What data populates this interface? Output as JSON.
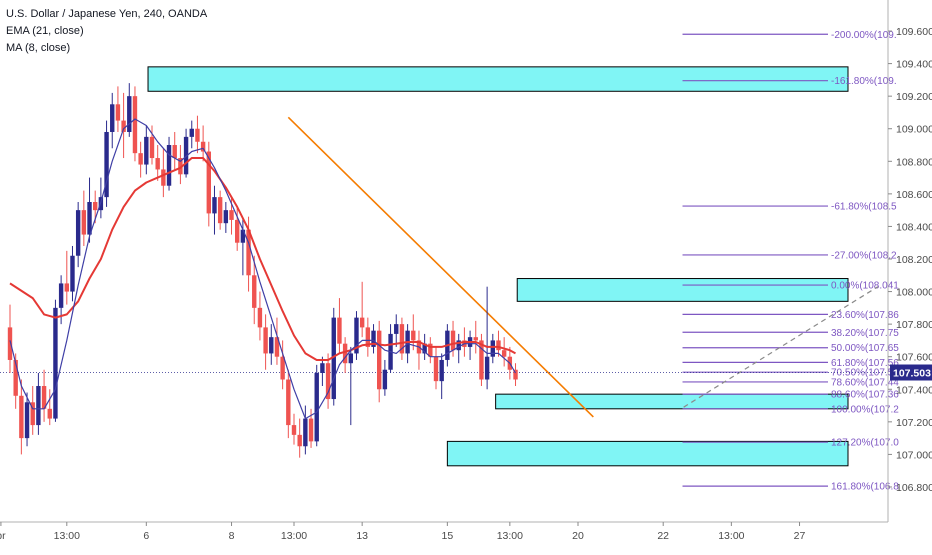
{
  "header": {
    "symbol_line": "U.S. Dollar / Japanese Yen, 240, OANDA",
    "indicator_ema": "EMA (21, close)",
    "indicator_ma": "MA (8, close)"
  },
  "colors": {
    "up": "#2a2a8c",
    "down": "#ef5350",
    "ema": "#e53935",
    "ma": "#3f3fa6",
    "fib": "#7e57c2",
    "zone_fill": "#80f5f5",
    "zone_stroke": "#000000",
    "trendline": "#f57c00",
    "price_badge": "#2a2a8c",
    "axis_text": "#4a4a4a"
  },
  "chart_data": {
    "type": "candlestick",
    "y_axis": {
      "min": 106.72,
      "max": 109.68,
      "ticks": [
        106.8,
        107.0,
        107.2,
        107.4,
        107.6,
        107.8,
        108.0,
        108.2,
        108.4,
        108.6,
        108.8,
        109.0,
        109.2,
        109.4,
        109.6
      ],
      "tick_labels": [
        "106.800",
        "107.000",
        "107.200",
        "107.400",
        "107.600",
        "107.800",
        "108.000",
        "108.200",
        "108.400",
        "108.600",
        "108.800",
        "109.000",
        "109.200",
        "109.400",
        "109.600"
      ]
    },
    "x_axis_labels": [
      {
        "label": "pr",
        "bar": -1.6
      },
      {
        "label": "13:00",
        "bar": 10
      },
      {
        "label": "6",
        "bar": 24
      },
      {
        "label": "8",
        "bar": 39
      },
      {
        "label": "13:00",
        "bar": 50
      },
      {
        "label": "13",
        "bar": 62
      },
      {
        "label": "15",
        "bar": 77
      },
      {
        "label": "13:00",
        "bar": 88
      },
      {
        "label": "20",
        "bar": 100
      },
      {
        "label": "22",
        "bar": 115
      },
      {
        "label": "13:00",
        "bar": 127
      },
      {
        "label": "27",
        "bar": 139
      }
    ],
    "current_price": {
      "value": 107.503,
      "label": "107.503"
    },
    "candles": [
      [
        107.78,
        107.92,
        107.5,
        107.58
      ],
      [
        107.58,
        107.62,
        107.28,
        107.36
      ],
      [
        107.36,
        107.46,
        107.0,
        107.1
      ],
      [
        107.1,
        107.38,
        107.05,
        107.32
      ],
      [
        107.32,
        107.42,
        107.12,
        107.18
      ],
      [
        107.18,
        107.5,
        107.12,
        107.42
      ],
      [
        107.42,
        107.52,
        107.2,
        107.28
      ],
      [
        107.28,
        107.4,
        107.18,
        107.22
      ],
      [
        107.22,
        107.95,
        107.2,
        107.9
      ],
      [
        107.9,
        108.1,
        107.8,
        108.05
      ],
      [
        108.05,
        108.25,
        107.92,
        108.0
      ],
      [
        108.0,
        108.28,
        107.94,
        108.22
      ],
      [
        108.22,
        108.55,
        108.15,
        108.5
      ],
      [
        108.5,
        108.62,
        108.28,
        108.35
      ],
      [
        108.35,
        108.7,
        108.3,
        108.55
      ],
      [
        108.55,
        108.62,
        108.42,
        108.5
      ],
      [
        108.5,
        108.7,
        108.45,
        108.58
      ],
      [
        108.58,
        109.05,
        108.52,
        108.98
      ],
      [
        108.98,
        109.22,
        108.88,
        109.15
      ],
      [
        109.15,
        109.26,
        108.98,
        109.05
      ],
      [
        109.05,
        109.22,
        108.82,
        108.98
      ],
      [
        108.98,
        109.28,
        108.95,
        109.2
      ],
      [
        109.2,
        109.26,
        108.8,
        108.85
      ],
      [
        108.85,
        108.92,
        108.7,
        108.78
      ],
      [
        108.78,
        109.02,
        108.72,
        108.95
      ],
      [
        108.95,
        109.02,
        108.78,
        108.82
      ],
      [
        108.82,
        108.9,
        108.68,
        108.75
      ],
      [
        108.75,
        108.88,
        108.58,
        108.65
      ],
      [
        108.65,
        108.95,
        108.62,
        108.9
      ],
      [
        108.9,
        108.98,
        108.75,
        108.82
      ],
      [
        108.82,
        108.9,
        108.66,
        108.72
      ],
      [
        108.72,
        109.0,
        108.7,
        108.95
      ],
      [
        108.95,
        109.05,
        108.88,
        109.0
      ],
      [
        109.0,
        109.08,
        108.85,
        108.92
      ],
      [
        108.92,
        109.02,
        108.8,
        108.86
      ],
      [
        108.86,
        108.92,
        108.4,
        108.48
      ],
      [
        108.48,
        108.65,
        108.35,
        108.58
      ],
      [
        108.58,
        108.62,
        108.38,
        108.42
      ],
      [
        108.42,
        108.55,
        108.36,
        108.5
      ],
      [
        108.5,
        108.58,
        108.35,
        108.44
      ],
      [
        108.44,
        108.52,
        108.25,
        108.3
      ],
      [
        108.3,
        108.45,
        108.1,
        108.38
      ],
      [
        108.38,
        108.46,
        108.0,
        108.1
      ],
      [
        108.1,
        108.22,
        107.8,
        107.9
      ],
      [
        107.9,
        108.0,
        107.7,
        107.78
      ],
      [
        107.78,
        107.86,
        107.52,
        107.62
      ],
      [
        107.62,
        107.8,
        107.55,
        107.72
      ],
      [
        107.72,
        107.84,
        107.55,
        107.6
      ],
      [
        107.6,
        107.7,
        107.4,
        107.46
      ],
      [
        107.46,
        107.52,
        107.1,
        107.18
      ],
      [
        107.18,
        107.25,
        107.06,
        107.12
      ],
      [
        107.12,
        107.22,
        106.98,
        107.05
      ],
      [
        107.05,
        107.3,
        107.0,
        107.22
      ],
      [
        107.22,
        107.28,
        107.04,
        107.08
      ],
      [
        107.08,
        107.55,
        107.05,
        107.5
      ],
      [
        107.5,
        107.6,
        107.42,
        107.56
      ],
      [
        107.56,
        107.62,
        107.28,
        107.34
      ],
      [
        107.34,
        107.9,
        107.3,
        107.84
      ],
      [
        107.84,
        107.96,
        107.62,
        107.68
      ],
      [
        107.68,
        107.72,
        107.5,
        107.56
      ],
      [
        107.56,
        107.66,
        107.18,
        107.62
      ],
      [
        107.62,
        107.88,
        107.58,
        107.84
      ],
      [
        107.84,
        108.06,
        107.72,
        107.78
      ],
      [
        107.78,
        107.84,
        107.6,
        107.66
      ],
      [
        107.66,
        107.8,
        107.62,
        107.76
      ],
      [
        107.76,
        107.82,
        107.32,
        107.4
      ],
      [
        107.4,
        107.58,
        107.36,
        107.52
      ],
      [
        107.52,
        107.8,
        107.5,
        107.74
      ],
      [
        107.74,
        107.86,
        107.66,
        107.8
      ],
      [
        107.8,
        107.84,
        107.58,
        107.62
      ],
      [
        107.62,
        107.8,
        107.56,
        107.76
      ],
      [
        107.76,
        107.86,
        107.64,
        107.7
      ],
      [
        107.7,
        107.76,
        107.52,
        107.62
      ],
      [
        107.62,
        107.74,
        107.58,
        107.68
      ],
      [
        107.68,
        107.72,
        107.56,
        107.6
      ],
      [
        107.6,
        107.66,
        107.4,
        107.45
      ],
      [
        107.45,
        107.62,
        107.34,
        107.58
      ],
      [
        107.58,
        107.8,
        107.54,
        107.76
      ],
      [
        107.76,
        107.82,
        107.6,
        107.64
      ],
      [
        107.64,
        107.74,
        107.56,
        107.7
      ],
      [
        107.7,
        107.78,
        107.6,
        107.66
      ],
      [
        107.66,
        107.76,
        107.58,
        107.72
      ],
      [
        107.72,
        107.82,
        107.62,
        107.7
      ],
      [
        107.7,
        107.74,
        107.42,
        107.46
      ],
      [
        107.46,
        108.03,
        107.4,
        107.6
      ],
      [
        107.6,
        107.74,
        107.56,
        107.7
      ],
      [
        107.7,
        107.76,
        107.6,
        107.64
      ],
      [
        107.64,
        107.72,
        107.54,
        107.6
      ],
      [
        107.6,
        107.66,
        107.46,
        107.52
      ],
      [
        107.52,
        107.56,
        107.42,
        107.46
      ]
    ],
    "ema21": [
      [
        0,
        108.05
      ],
      [
        4,
        107.96
      ],
      [
        6,
        107.86
      ],
      [
        8,
        107.84
      ],
      [
        10,
        107.86
      ],
      [
        12,
        107.94
      ],
      [
        14,
        108.08
      ],
      [
        16,
        108.2
      ],
      [
        18,
        108.38
      ],
      [
        20,
        108.52
      ],
      [
        22,
        108.62
      ],
      [
        24,
        108.67
      ],
      [
        26,
        108.7
      ],
      [
        28,
        108.73
      ],
      [
        30,
        108.76
      ],
      [
        32,
        108.82
      ],
      [
        34,
        108.82
      ],
      [
        36,
        108.74
      ],
      [
        38,
        108.64
      ],
      [
        40,
        108.52
      ],
      [
        42,
        108.38
      ],
      [
        44,
        108.2
      ],
      [
        46,
        108.04
      ],
      [
        48,
        107.88
      ],
      [
        50,
        107.73
      ],
      [
        52,
        107.62
      ],
      [
        54,
        107.58
      ],
      [
        56,
        107.58
      ],
      [
        58,
        107.62
      ],
      [
        60,
        107.64
      ],
      [
        62,
        107.67
      ],
      [
        64,
        107.68
      ],
      [
        66,
        107.67
      ],
      [
        68,
        107.68
      ],
      [
        70,
        107.69
      ],
      [
        72,
        107.69
      ],
      [
        74,
        107.66
      ],
      [
        76,
        107.66
      ],
      [
        78,
        107.68
      ],
      [
        80,
        107.69
      ],
      [
        82,
        107.69
      ],
      [
        84,
        107.66
      ],
      [
        86,
        107.66
      ],
      [
        88,
        107.64
      ],
      [
        89,
        107.62
      ]
    ],
    "ma8": [
      [
        0,
        107.7
      ],
      [
        2,
        107.42
      ],
      [
        4,
        107.28
      ],
      [
        6,
        107.28
      ],
      [
        8,
        107.4
      ],
      [
        10,
        107.7
      ],
      [
        12,
        108.04
      ],
      [
        14,
        108.34
      ],
      [
        16,
        108.55
      ],
      [
        18,
        108.8
      ],
      [
        20,
        109.0
      ],
      [
        22,
        109.06
      ],
      [
        24,
        109.02
      ],
      [
        26,
        108.92
      ],
      [
        28,
        108.84
      ],
      [
        30,
        108.8
      ],
      [
        32,
        108.86
      ],
      [
        34,
        108.88
      ],
      [
        36,
        108.76
      ],
      [
        38,
        108.62
      ],
      [
        40,
        108.46
      ],
      [
        42,
        108.3
      ],
      [
        44,
        108.06
      ],
      [
        46,
        107.84
      ],
      [
        48,
        107.62
      ],
      [
        50,
        107.4
      ],
      [
        52,
        107.22
      ],
      [
        54,
        107.26
      ],
      [
        56,
        107.38
      ],
      [
        58,
        107.55
      ],
      [
        60,
        107.64
      ],
      [
        62,
        107.7
      ],
      [
        64,
        107.7
      ],
      [
        66,
        107.64
      ],
      [
        68,
        107.62
      ],
      [
        70,
        107.68
      ],
      [
        72,
        107.66
      ],
      [
        74,
        107.6
      ],
      [
        76,
        107.6
      ],
      [
        78,
        107.64
      ],
      [
        80,
        107.68
      ],
      [
        82,
        107.68
      ],
      [
        84,
        107.62
      ],
      [
        86,
        107.62
      ],
      [
        88,
        107.56
      ],
      [
        89,
        107.5
      ]
    ],
    "fib_levels": [
      {
        "value": 106.805,
        "label": "161.80%(106.8"
      },
      {
        "value": 107.075,
        "label": "127.20%(107.0"
      },
      {
        "value": 107.28,
        "label": "100.00%(107.2"
      },
      {
        "value": 107.37,
        "label": "88.60%(107.36"
      },
      {
        "value": 107.445,
        "label": "78.60%(107.44"
      },
      {
        "value": 107.505,
        "label": "70.50%(107.50"
      },
      {
        "value": 107.565,
        "label": "61.80%(107.56"
      },
      {
        "value": 107.655,
        "label": "50.00%(107.65"
      },
      {
        "value": 107.75,
        "label": "38.20%(107.75"
      },
      {
        "value": 107.86,
        "label": "23.60%(107.86"
      },
      {
        "value": 108.04,
        "label": "0.00%(108.041"
      },
      {
        "value": 108.225,
        "label": "-27.00%(108.2"
      },
      {
        "value": 108.525,
        "label": "-61.80%(108.5"
      },
      {
        "value": 109.295,
        "label": "-161.80%(109."
      },
      {
        "value": 109.58,
        "label": "-200.00%(109."
      }
    ],
    "zones": [
      {
        "x1": 24.3,
        "x2": 153.0,
        "y1": 109.23,
        "y2": 109.38
      },
      {
        "x1": 89.3,
        "x2": 153.0,
        "y1": 107.94,
        "y2": 108.08
      },
      {
        "x1": 85.5,
        "x2": 153.0,
        "y1": 107.28,
        "y2": 107.37
      },
      {
        "x1": 77.0,
        "x2": 153.0,
        "y1": 106.93,
        "y2": 107.08
      }
    ],
    "fib_x_range": [
      118.4,
      153.0
    ],
    "trendline": {
      "x1": 49.0,
      "y1": 109.07,
      "x2": 102.7,
      "y2": 107.23
    },
    "dashed_line": {
      "x1": 118.6,
      "y1": 107.29,
      "x2": 152.8,
      "y2": 108.03
    }
  }
}
